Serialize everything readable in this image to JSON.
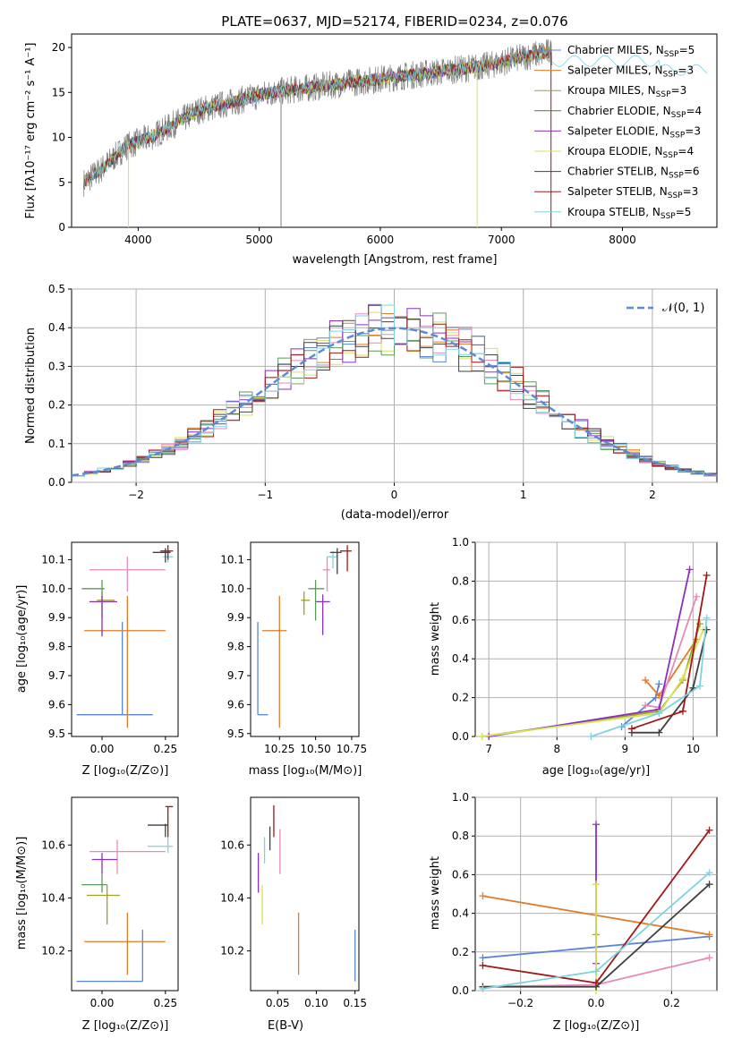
{
  "title": "PLATE=0637, MJD=52174, FIBERID=0234, z=0.076",
  "colors": {
    "Chabrier MILES": "#5b84d6",
    "Salpeter MILES": "#e07b28",
    "Kroupa MILES": "#a0a020",
    "Chabrier ELODIE": "#4a7a40",
    "Salpeter ELODIE": "#8b2fbf",
    "Kroupa ELODIE": "#d8e25a",
    "Chabrier STELIB": "#404040",
    "Salpeter STELIB": "#a01818",
    "Kroupa STELIB": "#7dd3e0",
    "pink": "#e68ab8",
    "green": "#5a9a5a",
    "data": "#808080"
  },
  "panels": {
    "spectrum": {
      "xlabel": "wavelength [Angstrom, rest frame]",
      "ylabel": "Flux [fλ10⁻¹⁷ erg cm⁻² s⁻¹ A⁻¹]",
      "xticks": [
        "4000",
        "5000",
        "6000",
        "7000",
        "8000"
      ],
      "yticks": [
        "0",
        "5",
        "10",
        "15",
        "20"
      ],
      "legend": [
        {
          "name": "Chabrier MILES",
          "nssp": "5"
        },
        {
          "name": "Salpeter MILES",
          "nssp": "3"
        },
        {
          "name": "Kroupa MILES",
          "nssp": "3"
        },
        {
          "name": "Chabrier ELODIE",
          "nssp": "4"
        },
        {
          "name": "Salpeter ELODIE",
          "nssp": "3"
        },
        {
          "name": "Kroupa ELODIE",
          "nssp": "4"
        },
        {
          "name": "Chabrier STELIB",
          "nssp": "6"
        },
        {
          "name": "Salpeter STELIB",
          "nssp": "3"
        },
        {
          "name": "Kroupa STELIB",
          "nssp": "5"
        }
      ]
    },
    "residuals": {
      "xlabel": "(data-model)/error",
      "ylabel": "Normed distribution",
      "xticks": [
        "−2",
        "−1",
        "0",
        "1",
        "2"
      ],
      "yticks": [
        "0.0",
        "0.1",
        "0.2",
        "0.3",
        "0.4",
        "0.5"
      ],
      "legend": "𝒩(0, 1)"
    },
    "age_Z": {
      "xlabel": "Z [log₁₀(Z/Z⊙)]",
      "ylabel": "age  [log₁₀(age/yr)]",
      "xticks": [
        "0.00",
        "0.25"
      ],
      "yticks": [
        "9.5",
        "9.6",
        "9.7",
        "9.8",
        "9.9",
        "10.0",
        "10.1"
      ]
    },
    "age_mass": {
      "xlabel": "mass [log₁₀(M/M⊙)]",
      "xticks": [
        "10.25",
        "10.50",
        "10.75"
      ],
      "yticks": [
        "9.5",
        "9.6",
        "9.7",
        "9.8",
        "9.9",
        "10.0",
        "10.1"
      ]
    },
    "mw_age": {
      "xlabel": "age  [log₁₀(age/yr)]",
      "ylabel": "mass weight",
      "xticks": [
        "7",
        "8",
        "9",
        "10"
      ],
      "yticks": [
        "0.0",
        "0.2",
        "0.4",
        "0.6",
        "0.8",
        "1.0"
      ]
    },
    "mass_Z": {
      "xlabel": "Z [log₁₀(Z/Z⊙)]",
      "ylabel": "mass [log₁₀(M/M⊙)]",
      "xticks": [
        "0.00",
        "0.25"
      ],
      "yticks": [
        "10.2",
        "10.4",
        "10.6"
      ]
    },
    "mass_ebv": {
      "xlabel": "E(B-V)",
      "xticks": [
        "0.05",
        "0.10",
        "0.15"
      ],
      "yticks": [
        "10.2",
        "10.4",
        "10.6"
      ]
    },
    "mw_Z": {
      "xlabel": "Z [log₁₀(Z/Z⊙)]",
      "ylabel": "mass weight",
      "xticks": [
        "−0.2",
        "0.0",
        "0.2"
      ],
      "yticks": [
        "0.0",
        "0.2",
        "0.4",
        "0.6",
        "0.8",
        "1.0"
      ]
    }
  },
  "chart_data": [
    {
      "type": "line",
      "title": "PLATE=0637, MJD=52174, FIBERID=0234, z=0.076",
      "xlabel": "wavelength [Angstrom, rest frame]",
      "ylabel": "Flux [fλ10⁻¹⁷ erg cm⁻² s⁻¹ A⁻¹]",
      "xlim": [
        3450,
        8780
      ],
      "ylim": [
        0,
        21.5
      ],
      "continuum": {
        "x": [
          3550,
          3700,
          3900,
          4100,
          4300,
          4500,
          4800,
          5100,
          5400,
          5700,
          6000,
          6300,
          6600,
          6900,
          7200,
          7400
        ],
        "y": [
          5,
          6.5,
          9,
          10,
          11.5,
          13,
          14,
          15,
          15.5,
          16,
          16.5,
          17,
          17.5,
          18,
          19,
          19.5
        ]
      },
      "legend_placement": "upper right"
    },
    {
      "type": "area",
      "xlabel": "(data-model)/error",
      "ylabel": "Normed distribution",
      "xlim": [
        -2.5,
        2.5
      ],
      "ylim": [
        0,
        0.5
      ],
      "grid": true,
      "bin_width": 0.1,
      "series_values": "histograms of normalised residuals, one per model; reference curve is the standard normal N(0,1)",
      "reference": {
        "name": "𝒩(0, 1)",
        "mean": 0,
        "sd": 1
      }
    },
    {
      "type": "scatter",
      "xlabel": "Z [log₁₀(Z/Z⊙)]",
      "ylabel": "age  [log₁₀(age/yr)]",
      "xlim": [
        -0.12,
        0.3
      ],
      "ylim": [
        9.49,
        10.16
      ],
      "points": [
        {
          "c": "Chabrier MILES",
          "x": 0.08,
          "xe": [
            -0.1,
            0.2
          ],
          "y": 9.565,
          "ye": [
            9.565,
            9.885
          ]
        },
        {
          "c": "Salpeter MILES",
          "x": 0.1,
          "xe": [
            -0.07,
            0.25
          ],
          "y": 9.855,
          "ye": [
            9.52,
            9.975
          ]
        },
        {
          "c": "Kroupa MILES",
          "x": 0.0,
          "xe": [
            -0.02,
            0.05
          ],
          "y": 9.96,
          "ye": [
            9.9,
            9.99
          ]
        },
        {
          "c": "pink",
          "x": 0.1,
          "xe": [
            -0.05,
            0.25
          ],
          "y": 10.065,
          "ye": [
            9.99,
            10.11
          ]
        },
        {
          "c": "Salpeter ELODIE",
          "x": 0.0,
          "xe": [
            -0.05,
            0.06
          ],
          "y": 9.955,
          "ye": [
            9.835,
            9.975
          ]
        },
        {
          "c": "green",
          "x": 0.0,
          "xe": [
            -0.08,
            0.01
          ],
          "y": 10.0,
          "ye": [
            9.975,
            10.03
          ]
        },
        {
          "c": "Kroupa STELIB",
          "x": 0.26,
          "xe": [
            0.24,
            0.28
          ],
          "y": 10.11,
          "ye": [
            10.09,
            10.13
          ]
        },
        {
          "c": "Chabrier STELIB",
          "x": 0.25,
          "xe": [
            0.2,
            0.27
          ],
          "y": 10.125,
          "ye": [
            10.09,
            10.14
          ]
        },
        {
          "c": "Salpeter STELIB",
          "x": 0.26,
          "xe": [
            0.23,
            0.28
          ],
          "y": 10.13,
          "ye": [
            10.1,
            10.15
          ]
        }
      ]
    },
    {
      "type": "scatter",
      "xlabel": "mass [log₁₀(M/M⊙)]",
      "xlim": [
        10.05,
        10.8
      ],
      "ylim": [
        9.49,
        10.16
      ],
      "points": [
        {
          "c": "Chabrier MILES",
          "x": 10.1,
          "xe": [
            10.1,
            10.17
          ],
          "y": 9.565,
          "ye": [
            9.565,
            9.885
          ]
        },
        {
          "c": "Salpeter MILES",
          "x": 10.25,
          "xe": [
            10.13,
            10.3
          ],
          "y": 9.855,
          "ye": [
            9.52,
            9.975
          ]
        },
        {
          "c": "Kroupa MILES",
          "x": 10.42,
          "xe": [
            10.4,
            10.46
          ],
          "y": 9.96,
          "ye": [
            9.91,
            9.99
          ]
        },
        {
          "c": "pink",
          "x": 10.58,
          "xe": [
            10.55,
            10.6
          ],
          "y": 10.065,
          "ye": [
            9.99,
            10.11
          ]
        },
        {
          "c": "Salpeter ELODIE",
          "x": 10.55,
          "xe": [
            10.5,
            10.6
          ],
          "y": 9.955,
          "ye": [
            9.84,
            9.98
          ]
        },
        {
          "c": "green",
          "x": 10.5,
          "xe": [
            10.45,
            10.56
          ],
          "y": 10.0,
          "ye": [
            9.89,
            10.03
          ]
        },
        {
          "c": "Kroupa STELIB",
          "x": 10.62,
          "xe": [
            10.58,
            10.65
          ],
          "y": 10.11,
          "ye": [
            10.07,
            10.13
          ]
        },
        {
          "c": "Chabrier STELIB",
          "x": 10.65,
          "xe": [
            10.6,
            10.68
          ],
          "y": 10.125,
          "ye": [
            10.05,
            10.14
          ]
        },
        {
          "c": "Salpeter STELIB",
          "x": 10.72,
          "xe": [
            10.67,
            10.75
          ],
          "y": 10.13,
          "ye": [
            10.06,
            10.15
          ]
        }
      ]
    },
    {
      "type": "line",
      "xlabel": "age  [log₁₀(age/yr)]",
      "ylabel": "mass weight",
      "xlim": [
        6.8,
        10.35
      ],
      "ylim": [
        0,
        1
      ],
      "grid": true,
      "series": [
        {
          "c": "Chabrier MILES",
          "x": [
            8.95,
            9.45,
            9.5
          ],
          "y": [
            0.05,
            0.2,
            0.27
          ]
        },
        {
          "c": "Salpeter MILES",
          "x": [
            9.3,
            9.5,
            10.05
          ],
          "y": [
            0.29,
            0.21,
            0.5
          ]
        },
        {
          "c": "Kroupa MILES",
          "x": [
            6.9,
            9.5,
            9.85,
            10.1
          ],
          "y": [
            0.0,
            0.13,
            0.29,
            0.58
          ]
        },
        {
          "c": "pink",
          "x": [
            9.3,
            9.5,
            10.05
          ],
          "y": [
            0.16,
            0.15,
            0.72
          ]
        },
        {
          "c": "Salpeter ELODIE",
          "x": [
            7.0,
            9.5,
            9.95
          ],
          "y": [
            0.0,
            0.14,
            0.86
          ]
        },
        {
          "c": "Kroupa ELODIE",
          "x": [
            6.9,
            9.5,
            9.85,
            10.15
          ],
          "y": [
            0.0,
            0.12,
            0.3,
            0.55
          ]
        },
        {
          "c": "Chabrier STELIB",
          "x": [
            9.1,
            9.5,
            10.0,
            10.2
          ],
          "y": [
            0.02,
            0.02,
            0.25,
            0.55
          ]
        },
        {
          "c": "Salpeter STELIB",
          "x": [
            9.1,
            9.85,
            10.2
          ],
          "y": [
            0.04,
            0.13,
            0.83
          ]
        },
        {
          "c": "Kroupa STELIB",
          "x": [
            8.5,
            9.5,
            10.1,
            10.2
          ],
          "y": [
            0.0,
            0.12,
            0.26,
            0.61
          ]
        }
      ]
    },
    {
      "type": "scatter",
      "xlabel": "Z [log₁₀(Z/Z⊙)]",
      "ylabel": "mass [log₁₀(M/M⊙)]",
      "xlim": [
        -0.12,
        0.3
      ],
      "ylim": [
        10.05,
        10.78
      ],
      "points": [
        {
          "c": "Chabrier MILES",
          "x": 0.16,
          "xe": [
            -0.1,
            0.16
          ],
          "y": 10.085,
          "ye": [
            10.085,
            10.28
          ]
        },
        {
          "c": "Salpeter MILES",
          "x": 0.1,
          "xe": [
            -0.07,
            0.25
          ],
          "y": 10.235,
          "ye": [
            10.11,
            10.345
          ]
        },
        {
          "c": "Kroupa MILES",
          "x": 0.02,
          "xe": [
            -0.06,
            0.07
          ],
          "y": 10.41,
          "ye": [
            10.3,
            10.45
          ]
        },
        {
          "c": "pink",
          "x": 0.06,
          "xe": [
            -0.05,
            0.25
          ],
          "y": 10.575,
          "ye": [
            10.49,
            10.62
          ]
        },
        {
          "c": "Salpeter ELODIE",
          "x": 0.0,
          "xe": [
            -0.04,
            0.06
          ],
          "y": 10.545,
          "ye": [
            10.49,
            10.57
          ]
        },
        {
          "c": "green",
          "x": 0.0,
          "xe": [
            -0.08,
            0.02
          ],
          "y": 10.45,
          "ye": [
            10.42,
            10.49
          ]
        },
        {
          "c": "Kroupa STELIB",
          "x": 0.26,
          "xe": [
            0.18,
            0.28
          ],
          "y": 10.595,
          "ye": [
            10.57,
            10.63
          ]
        },
        {
          "c": "Chabrier STELIB",
          "x": 0.25,
          "xe": [
            0.18,
            0.26
          ],
          "y": 10.675,
          "ye": [
            10.63,
            10.68
          ]
        },
        {
          "c": "Salpeter STELIB",
          "x": 0.26,
          "xe": [
            0.25,
            0.28
          ],
          "y": 10.745,
          "ye": [
            10.63,
            10.745
          ]
        }
      ]
    },
    {
      "type": "scatter",
      "xlabel": "E(B-V)",
      "xlim": [
        0.015,
        0.155
      ],
      "ylim": [
        10.05,
        10.78
      ],
      "points": [
        {
          "c": "Chabrier MILES",
          "x": 0.15,
          "ye": [
            10.085,
            10.28
          ]
        },
        {
          "c": "Salpeter MILES",
          "x": 0.077,
          "ye": [
            10.11,
            10.345
          ]
        },
        {
          "c": "Kroupa ELODIE",
          "x": 0.03,
          "ye": [
            10.3,
            10.45
          ]
        },
        {
          "c": "pink",
          "x": 0.053,
          "ye": [
            10.49,
            10.66
          ]
        },
        {
          "c": "Salpeter ELODIE",
          "x": 0.025,
          "ye": [
            10.42,
            10.57
          ]
        },
        {
          "c": "Kroupa STELIB",
          "x": 0.033,
          "ye": [
            10.53,
            10.63
          ]
        },
        {
          "c": "Chabrier STELIB",
          "x": 0.04,
          "ye": [
            10.58,
            10.67
          ]
        },
        {
          "c": "Salpeter STELIB",
          "x": 0.045,
          "ye": [
            10.63,
            10.75
          ]
        }
      ]
    },
    {
      "type": "line",
      "xlabel": "Z [log₁₀(Z/Z⊙)]",
      "ylabel": "mass weight",
      "xlim": [
        -0.32,
        0.32
      ],
      "ylim": [
        0,
        1
      ],
      "grid": true,
      "series": [
        {
          "c": "Chabrier MILES",
          "x": [
            -0.3,
            0.3
          ],
          "y": [
            0.17,
            0.28
          ]
        },
        {
          "c": "Salpeter MILES",
          "x": [
            -0.3,
            0.3
          ],
          "y": [
            0.49,
            0.29
          ]
        },
        {
          "c": "Kroupa MILES",
          "x": [
            0.0,
            0.0
          ],
          "y": [
            0.29,
            0.55
          ]
        },
        {
          "c": "pink",
          "x": [
            -0.3,
            0.0,
            0.3
          ],
          "y": [
            0.02,
            0.03,
            0.17
          ]
        },
        {
          "c": "Salpeter ELODIE",
          "x": [
            0.0,
            0.0
          ],
          "y": [
            0.14,
            0.86
          ]
        },
        {
          "c": "Kroupa ELODIE",
          "x": [
            0.0,
            0.0
          ],
          "y": [
            0.0,
            0.55
          ]
        },
        {
          "c": "Chabrier STELIB",
          "x": [
            -0.3,
            0.0,
            0.3
          ],
          "y": [
            0.02,
            0.02,
            0.55
          ]
        },
        {
          "c": "Salpeter STELIB",
          "x": [
            -0.3,
            0.0,
            0.3
          ],
          "y": [
            0.13,
            0.04,
            0.83
          ]
        },
        {
          "c": "Kroupa STELIB",
          "x": [
            -0.3,
            0.0,
            0.3
          ],
          "y": [
            0.01,
            0.1,
            0.61
          ]
        }
      ]
    }
  ]
}
